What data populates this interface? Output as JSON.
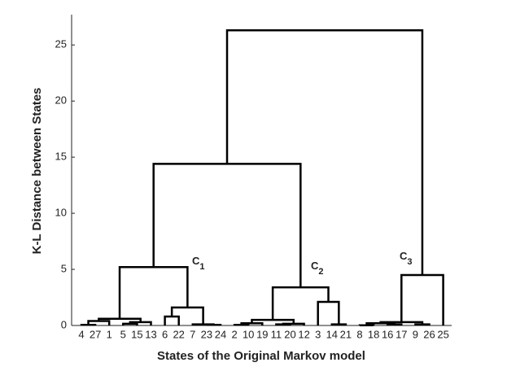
{
  "chart_data": {
    "type": "dendrogram",
    "xlabel": "States of the Original Markov model",
    "ylabel": "K-L Distance between States",
    "leaves": [
      "4",
      "27",
      "1",
      "5",
      "15",
      "13",
      "6",
      "22",
      "7",
      "23",
      "24",
      "2",
      "10",
      "19",
      "11",
      "20",
      "12",
      "3",
      "14",
      "21",
      "8",
      "18",
      "16",
      "17",
      "9",
      "26",
      "25"
    ],
    "merges": [
      {
        "children": [
          0,
          1
        ],
        "height": 0.05
      },
      {
        "children": [
          3,
          4
        ],
        "height": 0.15
      },
      {
        "children": [
          28,
          5
        ],
        "height": 0.3
      },
      {
        "children": [
          27,
          2
        ],
        "height": 0.4
      },
      {
        "children": [
          30,
          29
        ],
        "height": 0.6
      },
      {
        "children": [
          6,
          7
        ],
        "height": 0.8
      },
      {
        "children": [
          9,
          10
        ],
        "height": 0.05
      },
      {
        "children": [
          8,
          33
        ],
        "height": 0.1
      },
      {
        "children": [
          32,
          34
        ],
        "height": 1.6
      },
      {
        "children": [
          31,
          35
        ],
        "height": 5.2
      },
      {
        "children": [
          11,
          12
        ],
        "height": 0.05
      },
      {
        "children": [
          37,
          13
        ],
        "height": 0.2
      },
      {
        "children": [
          14,
          15
        ],
        "height": 0.1
      },
      {
        "children": [
          39,
          16
        ],
        "height": 0.15
      },
      {
        "children": [
          38,
          40
        ],
        "height": 0.5
      },
      {
        "children": [
          18,
          19
        ],
        "height": 0.1
      },
      {
        "children": [
          17,
          42
        ],
        "height": 2.1
      },
      {
        "children": [
          41,
          43
        ],
        "height": 3.4
      },
      {
        "children": [
          36,
          44
        ],
        "height": 14.4
      },
      {
        "children": [
          20,
          21
        ],
        "height": 0.02
      },
      {
        "children": [
          22,
          23
        ],
        "height": 0.1
      },
      {
        "children": [
          46,
          47
        ],
        "height": 0.2
      },
      {
        "children": [
          24,
          25
        ],
        "height": 0.1
      },
      {
        "children": [
          48,
          49
        ],
        "height": 0.3
      },
      {
        "children": [
          50,
          26
        ],
        "height": 4.5
      },
      {
        "children": [
          45,
          51
        ],
        "height": 26.3
      }
    ],
    "annotations": [
      {
        "text": "C",
        "sub": "1"
      },
      {
        "text": "C",
        "sub": "2"
      },
      {
        "text": "C",
        "sub": "3"
      }
    ],
    "color": "#000000",
    "ylim": [
      0,
      27.7
    ],
    "yticks": [
      0,
      5,
      10,
      15,
      20,
      25
    ]
  }
}
